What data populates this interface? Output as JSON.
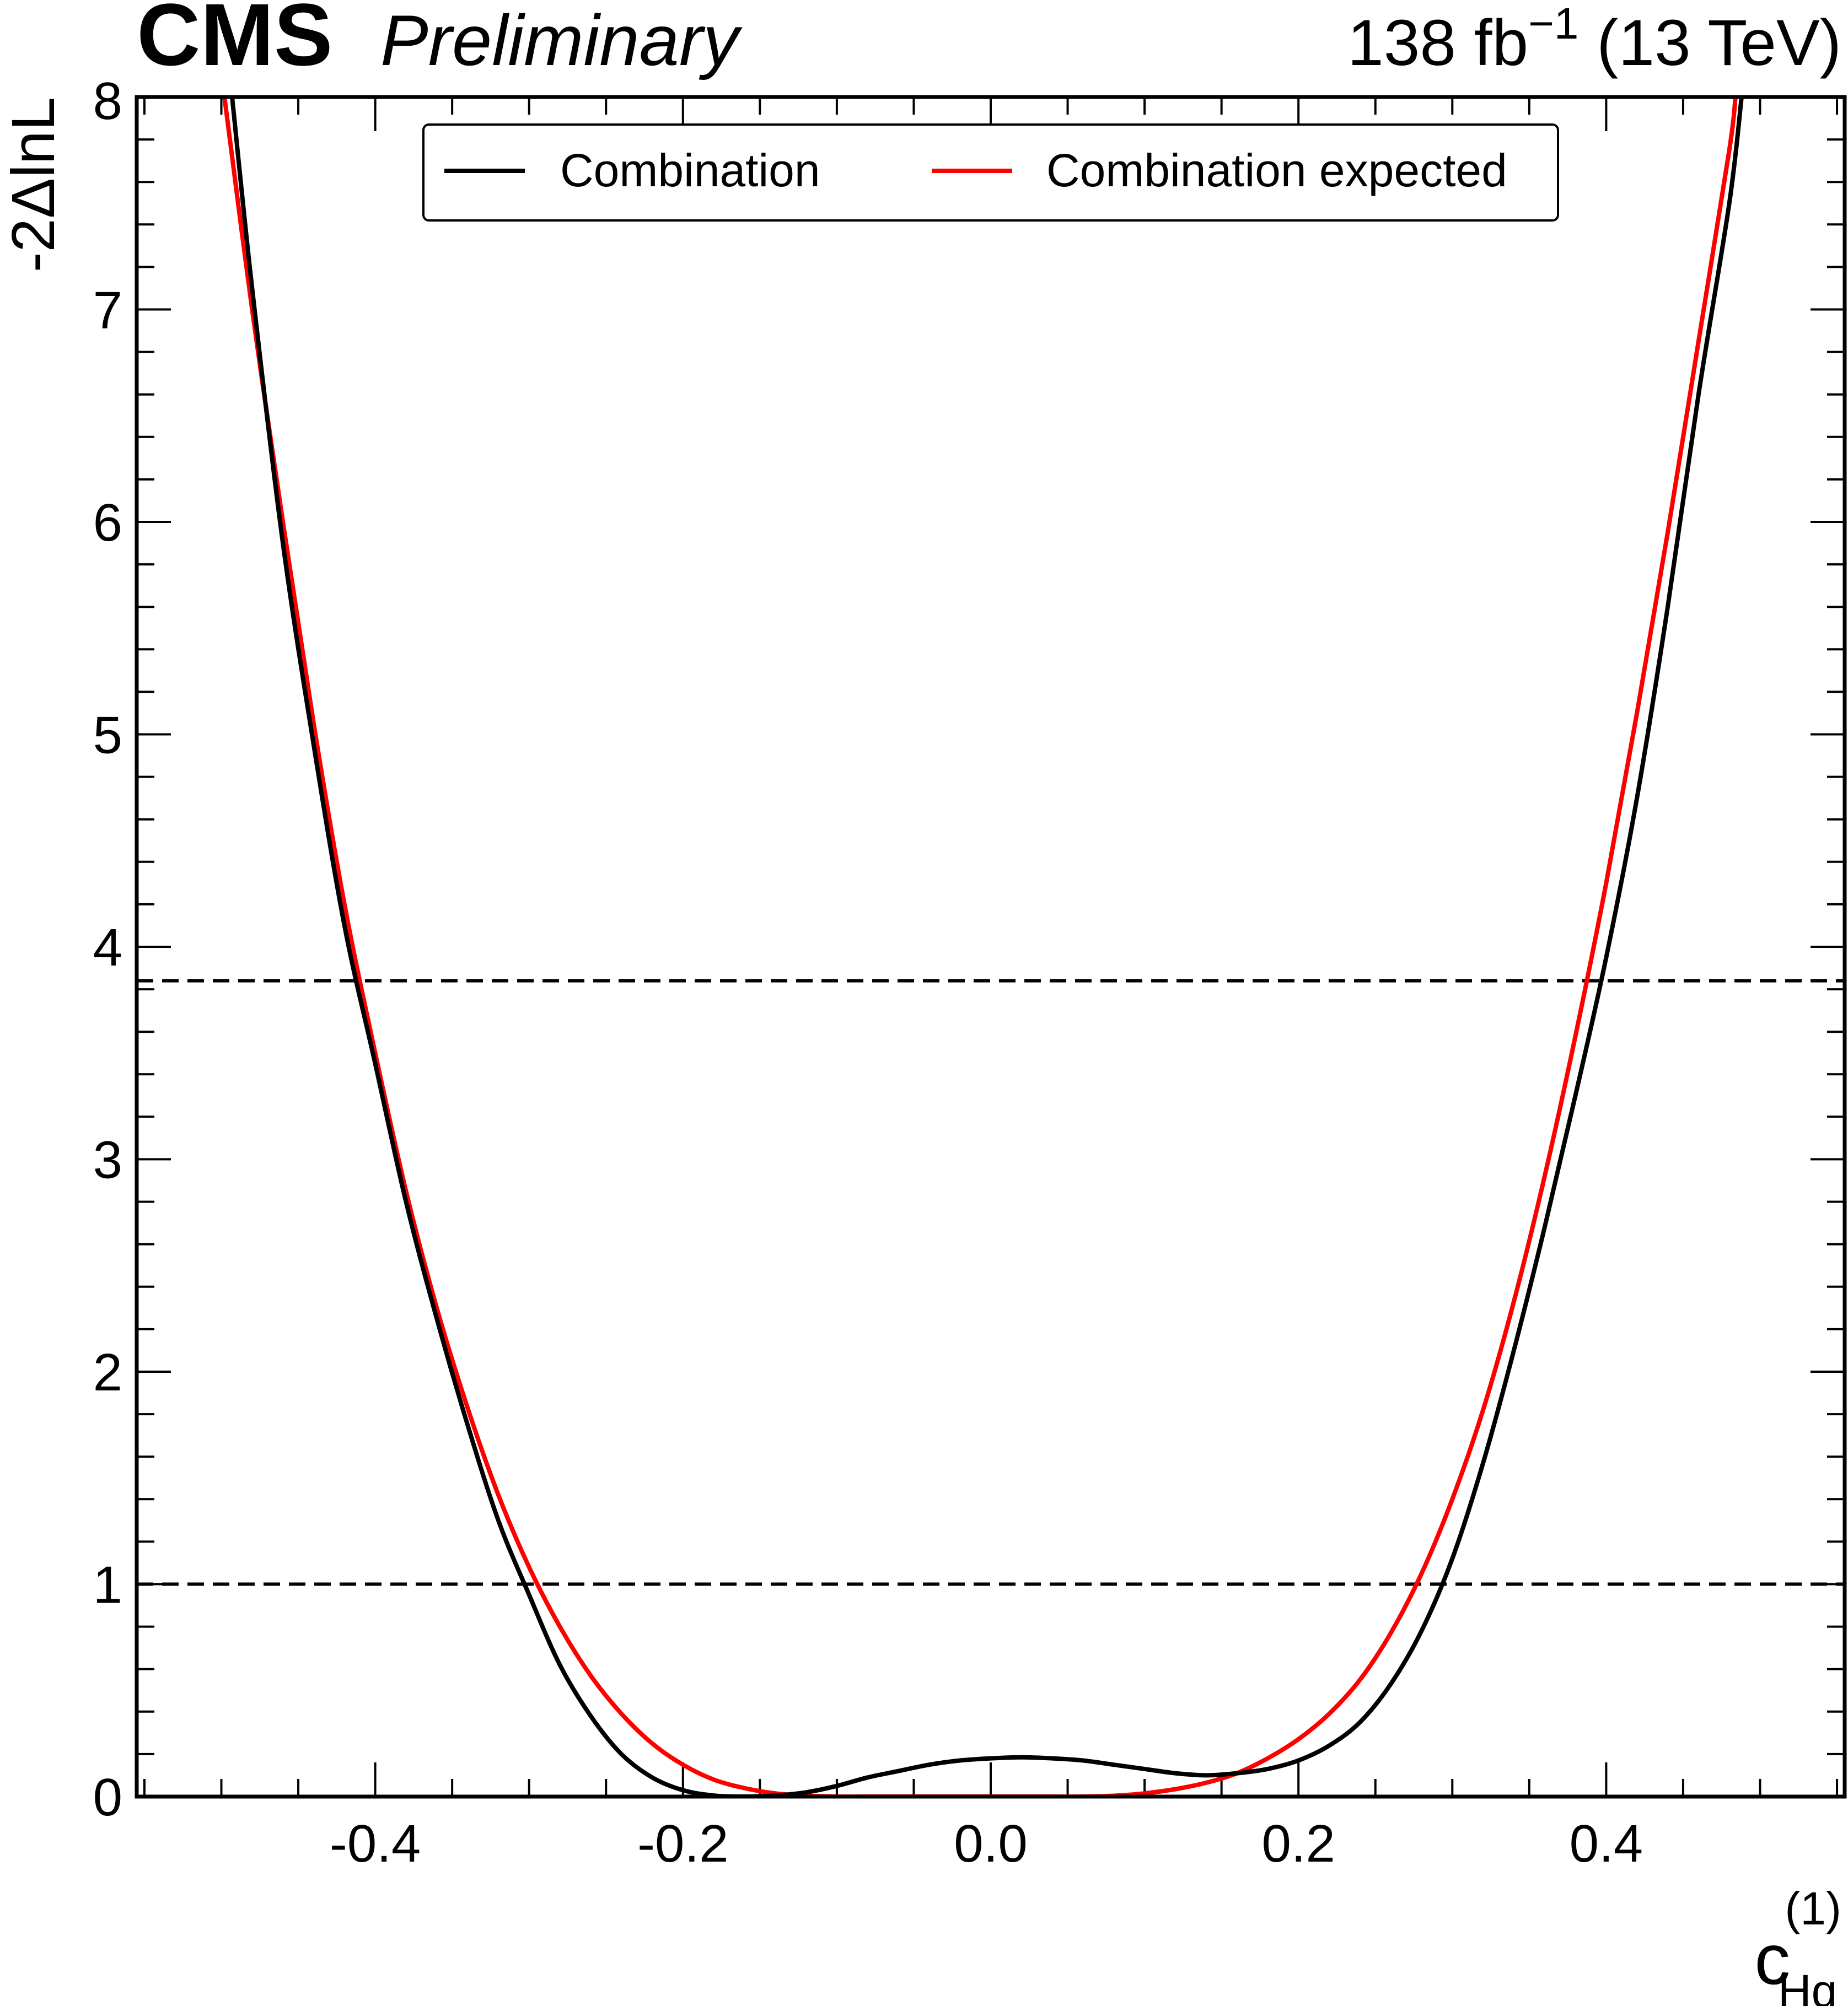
{
  "header": {
    "experiment": "CMS",
    "status": "Preliminary",
    "lumi": "138 fb",
    "lumi_exponent": "−1",
    "energy": " (13 TeV)"
  },
  "chart_data": {
    "type": "line",
    "xlabel": {
      "main": "c",
      "superscript": "(1)",
      "subscript": "Hq"
    },
    "ylabel": "-2ΔlnL",
    "xlim": [
      -0.555,
      0.555
    ],
    "ylim": [
      0,
      8
    ],
    "x_ticks": [
      -0.4,
      -0.2,
      0.0,
      0.2,
      0.4
    ],
    "x_tick_labels": [
      "-0.4",
      "-0.2",
      "0.0",
      "0.2",
      "0.4"
    ],
    "y_ticks": [
      0,
      1,
      2,
      3,
      4,
      5,
      6,
      7,
      8
    ],
    "y_tick_labels": [
      "0",
      "1",
      "2",
      "3",
      "4",
      "5",
      "6",
      "7",
      "8"
    ],
    "reference_lines": [
      {
        "y": 1.0,
        "style": "dashed",
        "color": "#000000"
      },
      {
        "y": 3.84,
        "style": "dashed",
        "color": "#000000"
      }
    ],
    "legend": {
      "placement": "top-center",
      "entries": [
        {
          "label": "Combination",
          "color": "#000000"
        },
        {
          "label": "Combination expected",
          "color": "#ff0000"
        }
      ]
    },
    "series": [
      {
        "name": "Combination",
        "color": "#000000",
        "points": [
          [
            -0.493,
            8.0
          ],
          [
            -0.48,
            7.1
          ],
          [
            -0.46,
            5.9
          ],
          [
            -0.44,
            4.95
          ],
          [
            -0.42,
            4.1
          ],
          [
            -0.4,
            3.45
          ],
          [
            -0.38,
            2.8
          ],
          [
            -0.36,
            2.25
          ],
          [
            -0.34,
            1.75
          ],
          [
            -0.32,
            1.3
          ],
          [
            -0.3,
            0.95
          ],
          [
            -0.28,
            0.62
          ],
          [
            -0.26,
            0.38
          ],
          [
            -0.24,
            0.2
          ],
          [
            -0.22,
            0.09
          ],
          [
            -0.2,
            0.03
          ],
          [
            -0.18,
            0.005
          ],
          [
            -0.16,
            0.0
          ],
          [
            -0.14,
            0.005
          ],
          [
            -0.12,
            0.02
          ],
          [
            -0.1,
            0.05
          ],
          [
            -0.08,
            0.09
          ],
          [
            -0.06,
            0.12
          ],
          [
            -0.04,
            0.15
          ],
          [
            -0.02,
            0.17
          ],
          [
            0.0,
            0.18
          ],
          [
            0.02,
            0.185
          ],
          [
            0.04,
            0.18
          ],
          [
            0.06,
            0.17
          ],
          [
            0.08,
            0.15
          ],
          [
            0.1,
            0.13
          ],
          [
            0.12,
            0.11
          ],
          [
            0.14,
            0.1
          ],
          [
            0.16,
            0.11
          ],
          [
            0.18,
            0.13
          ],
          [
            0.2,
            0.17
          ],
          [
            0.22,
            0.24
          ],
          [
            0.24,
            0.35
          ],
          [
            0.26,
            0.53
          ],
          [
            0.28,
            0.78
          ],
          [
            0.3,
            1.12
          ],
          [
            0.32,
            1.57
          ],
          [
            0.34,
            2.1
          ],
          [
            0.36,
            2.68
          ],
          [
            0.38,
            3.3
          ],
          [
            0.4,
            3.95
          ],
          [
            0.42,
            4.7
          ],
          [
            0.44,
            5.6
          ],
          [
            0.46,
            6.6
          ],
          [
            0.48,
            7.5
          ],
          [
            0.488,
            8.0
          ]
        ]
      },
      {
        "name": "Combination expected",
        "color": "#ff0000",
        "points": [
          [
            -0.498,
            8.0
          ],
          [
            -0.48,
            7.0
          ],
          [
            -0.46,
            6.0
          ],
          [
            -0.44,
            5.05
          ],
          [
            -0.42,
            4.2
          ],
          [
            -0.4,
            3.5
          ],
          [
            -0.38,
            2.85
          ],
          [
            -0.36,
            2.3
          ],
          [
            -0.34,
            1.83
          ],
          [
            -0.32,
            1.42
          ],
          [
            -0.3,
            1.08
          ],
          [
            -0.28,
            0.8
          ],
          [
            -0.26,
            0.57
          ],
          [
            -0.24,
            0.39
          ],
          [
            -0.22,
            0.25
          ],
          [
            -0.2,
            0.15
          ],
          [
            -0.18,
            0.08
          ],
          [
            -0.16,
            0.04
          ],
          [
            -0.14,
            0.015
          ],
          [
            -0.12,
            0.004
          ],
          [
            -0.1,
            0.0
          ],
          [
            -0.08,
            0.0
          ],
          [
            -0.06,
            0.0
          ],
          [
            -0.04,
            0.0
          ],
          [
            -0.02,
            0.0
          ],
          [
            0.0,
            0.0
          ],
          [
            0.02,
            0.0
          ],
          [
            0.04,
            0.0
          ],
          [
            0.06,
            0.0
          ],
          [
            0.08,
            0.004
          ],
          [
            0.1,
            0.015
          ],
          [
            0.12,
            0.035
          ],
          [
            0.14,
            0.065
          ],
          [
            0.16,
            0.11
          ],
          [
            0.18,
            0.18
          ],
          [
            0.2,
            0.27
          ],
          [
            0.22,
            0.39
          ],
          [
            0.24,
            0.55
          ],
          [
            0.26,
            0.77
          ],
          [
            0.28,
            1.05
          ],
          [
            0.3,
            1.4
          ],
          [
            0.32,
            1.82
          ],
          [
            0.34,
            2.33
          ],
          [
            0.36,
            2.92
          ],
          [
            0.38,
            3.58
          ],
          [
            0.4,
            4.3
          ],
          [
            0.42,
            5.1
          ],
          [
            0.44,
            5.95
          ],
          [
            0.46,
            6.85
          ],
          [
            0.48,
            7.75
          ],
          [
            0.484,
            8.0
          ]
        ]
      }
    ]
  }
}
